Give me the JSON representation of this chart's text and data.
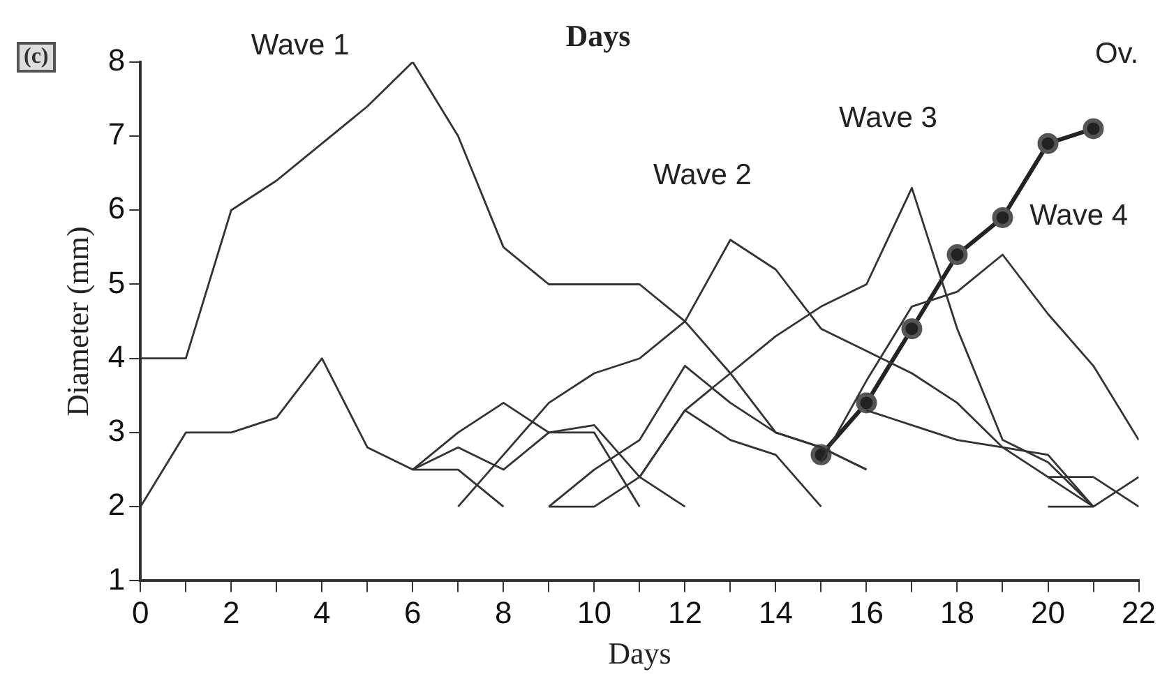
{
  "chart_data": {
    "type": "line",
    "title": "Days",
    "xlabel": "Days",
    "ylabel": "Diameter (mm)",
    "x": [
      0,
      1,
      2,
      3,
      4,
      5,
      6,
      7,
      8,
      9,
      10,
      11,
      12,
      13,
      14,
      15,
      16,
      17,
      18,
      19,
      20,
      21,
      22
    ],
    "xlim": [
      0,
      22
    ],
    "xticks": [
      0,
      {
        "value": 1,
        "label": null
      },
      2,
      {
        "value": 3,
        "label": null
      },
      4,
      {
        "value": 5,
        "label": null
      },
      6,
      {
        "value": 7,
        "label": null
      },
      8,
      {
        "value": 9,
        "label": null
      },
      10,
      {
        "value": 11,
        "label": null
      },
      12,
      {
        "value": 13,
        "label": null
      },
      14,
      {
        "value": 15,
        "label": null
      },
      16,
      {
        "value": 17,
        "label": null
      },
      18,
      {
        "value": 19,
        "label": null
      },
      20,
      {
        "value": 21,
        "label": null
      },
      22
    ],
    "ylim": [
      1,
      8
    ],
    "yticks": [
      1,
      2,
      3,
      4,
      5,
      6,
      7,
      8
    ],
    "grid": false,
    "legend": false,
    "marker": "none",
    "line_style": "solid",
    "series": [
      {
        "color": "#333333",
        "values": [
          4,
          4,
          6,
          6.4,
          6.9,
          7.4,
          8,
          7,
          5.5,
          5,
          5,
          5,
          4.5,
          3.8,
          3,
          2.8,
          2.5,
          null,
          null,
          null,
          null,
          null,
          null
        ]
      },
      {
        "color": "#333333",
        "values": [
          2,
          3,
          3,
          3.2,
          4,
          2.8,
          2.5,
          2.5,
          2,
          null,
          null,
          null,
          null,
          null,
          null,
          null,
          null,
          null,
          null,
          null,
          null,
          null,
          null
        ]
      },
      {
        "color": "#333333",
        "values": [
          null,
          null,
          null,
          null,
          null,
          null,
          2.5,
          2.8,
          2.5,
          3,
          3,
          2,
          null,
          null,
          null,
          null,
          null,
          null,
          null,
          null,
          null,
          null,
          null
        ]
      },
      {
        "color": "#333333",
        "values": [
          null,
          null,
          null,
          null,
          null,
          null,
          2.5,
          3,
          3.4,
          3,
          3.1,
          2.4,
          2,
          null,
          null,
          null,
          null,
          null,
          null,
          null,
          null,
          null,
          null
        ]
      },
      {
        "color": "#333333",
        "values": [
          null,
          null,
          null,
          null,
          null,
          null,
          null,
          2,
          2.7,
          3.4,
          3.8,
          4,
          4.5,
          5.6,
          5.2,
          4.4,
          4.1,
          3.8,
          3.4,
          2.8,
          2.4,
          2,
          null
        ]
      },
      {
        "color": "#333333",
        "values": [
          null,
          null,
          null,
          null,
          null,
          null,
          null,
          null,
          null,
          2,
          2,
          2.4,
          3.3,
          3.8,
          4.3,
          4.7,
          5,
          6.3,
          4.4,
          2.9,
          2.6,
          2,
          null
        ]
      },
      {
        "color": "#333333",
        "values": [
          null,
          null,
          null,
          null,
          null,
          null,
          null,
          null,
          null,
          2,
          2.5,
          2.9,
          3.9,
          3.4,
          3,
          2.8,
          2.5,
          null,
          null,
          null,
          null,
          null,
          null
        ]
      },
      {
        "color": "#333333",
        "values": [
          null,
          null,
          null,
          null,
          null,
          null,
          null,
          null,
          null,
          null,
          null,
          2.4,
          3.3,
          2.9,
          2.7,
          2,
          null,
          null,
          null,
          null,
          null,
          null,
          null
        ]
      },
      {
        "color": "#333333",
        "values": [
          null,
          null,
          null,
          null,
          null,
          null,
          null,
          null,
          null,
          null,
          null,
          null,
          null,
          null,
          null,
          2.6,
          3.7,
          4.7,
          4.9,
          5.4,
          4.6,
          3.9,
          2.9
        ]
      },
      {
        "color": "#333333",
        "values": [
          null,
          null,
          null,
          null,
          null,
          null,
          null,
          null,
          null,
          null,
          null,
          null,
          null,
          null,
          null,
          null,
          3.3,
          3.1,
          2.9,
          2.8,
          2.7,
          2,
          null
        ]
      },
      {
        "color": "#333333",
        "values": [
          null,
          null,
          null,
          null,
          null,
          null,
          null,
          null,
          null,
          null,
          null,
          null,
          null,
          null,
          null,
          null,
          null,
          null,
          null,
          null,
          2.4,
          2.4,
          2
        ]
      },
      {
        "color": "#333333",
        "values": [
          null,
          null,
          null,
          null,
          null,
          null,
          null,
          null,
          null,
          null,
          null,
          null,
          null,
          null,
          null,
          null,
          null,
          null,
          null,
          null,
          2,
          2,
          2.4
        ]
      },
      {
        "color": "#222222",
        "marker": "circle",
        "values": [
          null,
          null,
          null,
          null,
          null,
          null,
          null,
          null,
          null,
          null,
          null,
          null,
          null,
          null,
          null,
          2.7,
          3.4,
          4.4,
          5.4,
          5.9,
          6.9,
          7.1,
          null
        ]
      }
    ],
    "annotations": [
      "(c)",
      "Wave 1",
      "Wave 2",
      "Wave 3",
      "Wave 4",
      "Ov."
    ]
  }
}
